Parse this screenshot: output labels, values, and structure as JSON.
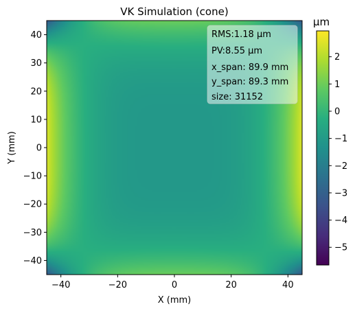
{
  "chart_data": {
    "type": "heatmap",
    "title": "VK Simulation (cone)",
    "xlabel": "X (mm)",
    "ylabel": "Y (mm)",
    "xlim": [
      -45,
      45
    ],
    "ylim": [
      -45,
      45
    ],
    "x_ticks": [
      -40,
      -20,
      0,
      20,
      40
    ],
    "x_tick_labels": [
      "−40",
      "−20",
      "0",
      "20",
      "40"
    ],
    "y_ticks": [
      -40,
      -30,
      -20,
      -10,
      0,
      10,
      20,
      30,
      40
    ],
    "y_tick_labels": [
      "−40",
      "−30",
      "−20",
      "−10",
      "0",
      "10",
      "20",
      "30",
      "40"
    ],
    "colorbar": {
      "label": "μm",
      "colormap": "viridis",
      "range": [
        -5.65,
        2.95
      ],
      "ticks": [
        -5,
        -4,
        -3,
        -2,
        -1,
        0,
        1,
        2
      ],
      "tick_labels": [
        "−5",
        "−4",
        "−3",
        "−2",
        "−1",
        "0",
        "1",
        "2"
      ]
    },
    "stats_box": {
      "lines": [
        "RMS:1.18 μm",
        "PV:8.55 μm",
        "x_span: 89.9 mm",
        "y_span: 89.3 mm",
        "size: 31152"
      ],
      "position": "top-right"
    },
    "surface_model": {
      "description_values": {
        "center_value": -1.1,
        "left_right_edge_max": 2.95,
        "top_bottom_edge_value": 0.9,
        "corner_min": -5.65
      }
    }
  },
  "colors": {
    "viridis": [
      "#440154",
      "#472d7b",
      "#3b528b",
      "#2c728e",
      "#21918c",
      "#28ae80",
      "#5ec962",
      "#addc30",
      "#fde725"
    ],
    "stats_box_bg": "#ffffff",
    "text": "#000000"
  }
}
